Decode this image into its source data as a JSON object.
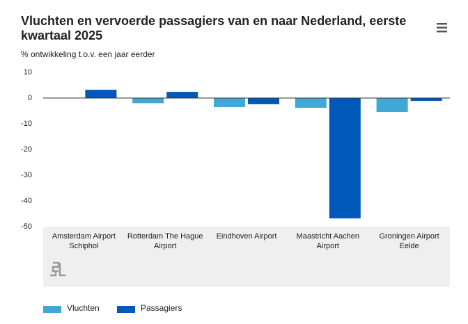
{
  "chart_data": {
    "type": "bar",
    "title": "Vluchten en vervoerde passagiers van en naar Nederland, eerste kwartaal 2025",
    "subtitle": "% ontwikkeling t.o.v. een jaar eerder",
    "categories": [
      "Amsterdam Airport Schiphol",
      "Rotterdam The Hague Airport",
      "Eindhoven Airport",
      "Maastricht Aachen Airport",
      "Groningen Airport Eelde"
    ],
    "series": [
      {
        "name": "Vluchten",
        "color": "#41a7d6",
        "values": [
          0,
          -2,
          -3.5,
          -3.8,
          -5.4
        ]
      },
      {
        "name": "Passagiers",
        "color": "#0058b8",
        "values": [
          3.2,
          2.4,
          -2.4,
          -46.8,
          -1.1
        ]
      }
    ],
    "ylim": [
      -50,
      10
    ],
    "yticks": [
      10,
      0,
      -10,
      -20,
      -30,
      -40,
      -50
    ],
    "grid": false,
    "legend": "bottom"
  }
}
